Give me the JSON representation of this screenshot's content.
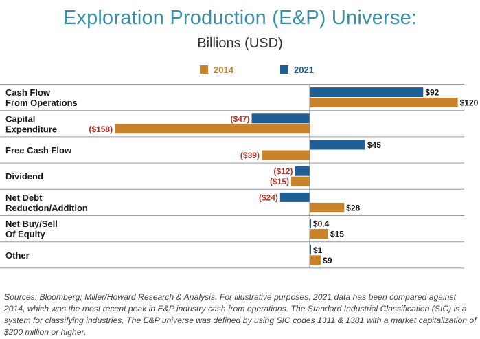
{
  "title": "Exploration Production (E&P) Universe:",
  "subtitle": "Billions (USD)",
  "colors": {
    "y2014": "#c8832a",
    "y2021": "#1f5f94",
    "negative_label": "#b0332a",
    "label": "#1a1a1a",
    "title": "#3a8fa8"
  },
  "chart_data": {
    "type": "bar",
    "orientation": "horizontal",
    "title": "Exploration Production (E&P) Universe:",
    "subtitle": "Billions (USD)",
    "xlabel": "",
    "ylabel": "",
    "xlim": [
      -170,
      125
    ],
    "grid": false,
    "legend": "top-center",
    "categories": [
      [
        "Cash Flow",
        "From Operations"
      ],
      [
        "Capital",
        "Expenditure"
      ],
      [
        "Free Cash Flow"
      ],
      [
        "Dividend"
      ],
      [
        "Net Debt",
        "Reduction/Addition"
      ],
      [
        "Net Buy/Sell",
        "Of Equity"
      ],
      [
        "Other"
      ]
    ],
    "series": [
      {
        "name": "2021",
        "values": [
          92,
          -47,
          45,
          -12,
          -24,
          0.4,
          1
        ],
        "labels": [
          "$92",
          "($47)",
          "$45",
          "($12)",
          "($24)",
          "$0.4",
          "$1"
        ]
      },
      {
        "name": "2014",
        "values": [
          120,
          -158,
          -39,
          -15,
          28,
          15,
          9
        ],
        "labels": [
          "$120",
          "($158)",
          "($39)",
          "($15)",
          "$28",
          "$15",
          "$9"
        ]
      }
    ]
  },
  "source_note": "Sources: Bloomberg; Miller/Howard Research & Analysis. For illustrative purposes, 2021 data has been compared against 2014, which was the most recent peak in E&P industry cash from operations. The Standard Industrial Classification (SIC) is a system for classifying industries. The E&P universe was defined by using SIC codes 1311 & 1381 with a market capitalization of $200 million or higher."
}
